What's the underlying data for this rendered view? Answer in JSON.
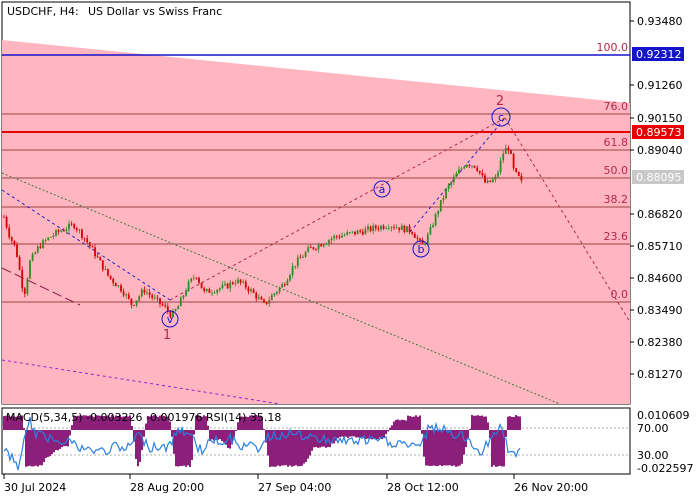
{
  "header": {
    "symbol_label": "USDCHF, H4:",
    "symbol_desc": "US Dollar vs Swiss Franc"
  },
  "price_axis": {
    "labels": [
      "0.93480",
      "0.92312",
      "0.91260",
      "0.90150",
      "0.89573",
      "0.89040",
      "0.88095",
      "0.86820",
      "0.85710",
      "0.84600",
      "0.83490",
      "0.82380",
      "0.81270"
    ],
    "highlight_blue": "0.92312",
    "highlight_red": "0.89573",
    "highlight_grey": "0.88095"
  },
  "fib_labels": [
    "100.0",
    "76.0",
    "61.8",
    "50.0",
    "38.2",
    "23.6",
    "0.0"
  ],
  "wave_labels": {
    "circle_a": "a",
    "circle_b": "b",
    "circle_c": "c",
    "circle_v": "v",
    "wave_1": "1",
    "wave_2": "2"
  },
  "indicator": {
    "caption": "MACD(5,34,5) -0.003226 -0.001976 RSI(14) 35.18",
    "axis_labels": [
      "0.010609",
      "70.00",
      "30.00",
      "-0.022597"
    ]
  },
  "time_axis": {
    "labels": [
      "30 Jul 2024",
      "28 Aug 20:00",
      "27 Sep 04:00",
      "28 Oct 12:00",
      "26 Nov 20:00"
    ]
  },
  "colors": {
    "pink_zone": "#ffb6c1",
    "blue_level": "#1414c8",
    "red_level": "#e60000",
    "bull_candle": "#2e8b22",
    "bear_candle": "#d40000",
    "macd_hist": "#8b1f7a",
    "rsi_line": "#2a7fe0",
    "wave_label": "#1414c8",
    "wave_number": "#b02a4a"
  },
  "chart_data": {
    "type": "candlestick",
    "instrument": "USDCHF",
    "timeframe": "H4",
    "ylim": [
      0.81,
      0.94
    ],
    "x_ticks": [
      "30 Jul 2024",
      "28 Aug 20:00",
      "27 Sep 04:00",
      "28 Oct 12:00",
      "26 Nov 20:00"
    ],
    "close_path": [
      [
        0,
        0.8705
      ],
      [
        5,
        0.865
      ],
      [
        12,
        0.86
      ],
      [
        20,
        0.845
      ],
      [
        26,
        0.856
      ],
      [
        35,
        0.861
      ],
      [
        46,
        0.864
      ],
      [
        56,
        0.866
      ],
      [
        70,
        0.868
      ],
      [
        80,
        0.864
      ],
      [
        92,
        0.858
      ],
      [
        105,
        0.851
      ],
      [
        118,
        0.847
      ],
      [
        128,
        0.842
      ],
      [
        140,
        0.847
      ],
      [
        150,
        0.844
      ],
      [
        160,
        0.8415
      ],
      [
        168,
        0.8385
      ],
      [
        175,
        0.842
      ],
      [
        183,
        0.848
      ],
      [
        192,
        0.852
      ],
      [
        200,
        0.846
      ],
      [
        210,
        0.847
      ],
      [
        222,
        0.848
      ],
      [
        232,
        0.85
      ],
      [
        242,
        0.848
      ],
      [
        252,
        0.845
      ],
      [
        260,
        0.842
      ],
      [
        268,
        0.845
      ],
      [
        280,
        0.849
      ],
      [
        290,
        0.855
      ],
      [
        305,
        0.86
      ],
      [
        318,
        0.862
      ],
      [
        330,
        0.864
      ],
      [
        345,
        0.865
      ],
      [
        360,
        0.866
      ],
      [
        372,
        0.867
      ],
      [
        385,
        0.868
      ],
      [
        396,
        0.867
      ],
      [
        408,
        0.866
      ],
      [
        418,
        0.861
      ],
      [
        425,
        0.865
      ],
      [
        433,
        0.872
      ],
      [
        442,
        0.879
      ],
      [
        452,
        0.884
      ],
      [
        462,
        0.888
      ],
      [
        472,
        0.887
      ],
      [
        482,
        0.881
      ],
      [
        492,
        0.883
      ],
      [
        500,
        0.892
      ],
      [
        505,
        0.893
      ],
      [
        510,
        0.885
      ],
      [
        515,
        0.883
      ],
      [
        520,
        0.88
      ]
    ],
    "fibonacci_levels": [
      {
        "label": "100.0",
        "price": 0.9231
      },
      {
        "label": "76.0",
        "price": 0.9005
      },
      {
        "label": "61.8",
        "price": 0.8904
      },
      {
        "label": "50.0",
        "price": 0.881
      },
      {
        "label": "38.2",
        "price": 0.8682
      },
      {
        "label": "23.6",
        "price": 0.8571
      },
      {
        "label": "0.0",
        "price": 0.836
      }
    ],
    "price_levels": [
      {
        "price": 0.92312,
        "color": "blue"
      },
      {
        "price": 0.89573,
        "color": "red"
      },
      {
        "price": 0.88095,
        "color": "grey"
      }
    ],
    "indicators": [
      {
        "name": "MACD(5,34,5)",
        "values": [
          -0.003226,
          -0.001976
        ]
      },
      {
        "name": "RSI(14)",
        "value": 35.18,
        "levels": [
          70,
          30
        ]
      }
    ]
  }
}
